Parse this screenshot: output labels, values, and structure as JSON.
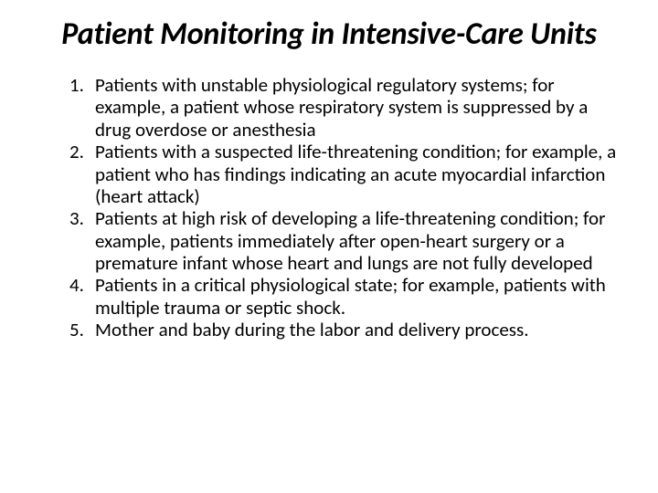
{
  "title": "Patient Monitoring in Intensive-Care Units",
  "items": [
    "Patients with unstable physiological regulatory systems; for example, a patient whose respiratory system is suppressed by a drug overdose or anesthesia",
    "Patients with a suspected life-threatening condition; for example, a patient who has findings indicating an acute myocardial infarction (heart attack)",
    " Patients at high risk of developing a life-threatening condition; for example, patients immediately after open-heart surgery or a premature infant whose heart and lungs are not fully developed",
    "Patients in a critical physiological state; for example, patients with multiple trauma or septic shock.",
    "Mother and baby during the labor and delivery process."
  ],
  "styling": {
    "background_color": "#ffffff",
    "text_color": "#000000",
    "title_fontsize": 34,
    "title_style": "italic bold",
    "body_fontsize": 21,
    "font_family": "Calibri",
    "slide_width": 720,
    "slide_height": 540
  }
}
